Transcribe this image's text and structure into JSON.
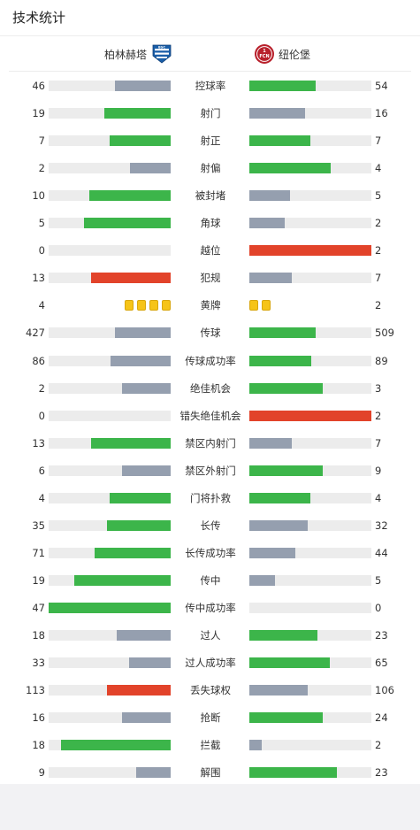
{
  "page": {
    "title": "技术统计"
  },
  "teams": {
    "home": {
      "name": "柏林赫塔",
      "logo_icon": "hertha-berlin-logo-icon",
      "colors": {
        "primary": "#1a5ea8",
        "secondary": "#ffffff"
      }
    },
    "away": {
      "name": "纽伦堡",
      "logo_icon": "fc-nurnberg-logo-icon",
      "logo_text": "1.FCN",
      "colors": {
        "primary": "#b8202b",
        "secondary": "#ffffff"
      }
    }
  },
  "colors": {
    "higher": "#3cb54a",
    "lower": "#959faf",
    "maximum": "#e2432a",
    "track": "#ececec",
    "yellow_card": "#f6c418"
  },
  "stats": [
    {
      "label": "控球率",
      "home": "46",
      "away": "54",
      "home_fill": 0.46,
      "away_fill": 0.54,
      "home_color": "lower",
      "away_color": "higher"
    },
    {
      "label": "射门",
      "home": "19",
      "away": "16",
      "home_fill": 0.54,
      "away_fill": 0.46,
      "home_color": "higher",
      "away_color": "lower"
    },
    {
      "label": "射正",
      "home": "7",
      "away": "7",
      "home_fill": 0.5,
      "away_fill": 0.5,
      "home_color": "higher",
      "away_color": "higher"
    },
    {
      "label": "射偏",
      "home": "2",
      "away": "4",
      "home_fill": 0.33,
      "away_fill": 0.67,
      "home_color": "lower",
      "away_color": "higher"
    },
    {
      "label": "被封堵",
      "home": "10",
      "away": "5",
      "home_fill": 0.67,
      "away_fill": 0.33,
      "home_color": "higher",
      "away_color": "lower"
    },
    {
      "label": "角球",
      "home": "5",
      "away": "2",
      "home_fill": 0.71,
      "away_fill": 0.29,
      "home_color": "higher",
      "away_color": "lower"
    },
    {
      "label": "越位",
      "home": "0",
      "away": "2",
      "home_fill": 0.0,
      "away_fill": 1.0,
      "home_color": "lower",
      "away_color": "maximum"
    },
    {
      "label": "犯规",
      "home": "13",
      "away": "7",
      "home_fill": 0.65,
      "away_fill": 0.35,
      "home_color": "maximum",
      "away_color": "lower"
    },
    {
      "label": "黄牌",
      "home": "4",
      "away": "2",
      "type": "cards",
      "home_cards": 4,
      "away_cards": 2
    },
    {
      "label": "传球",
      "home": "427",
      "away": "509",
      "home_fill": 0.46,
      "away_fill": 0.54,
      "home_color": "lower",
      "away_color": "higher"
    },
    {
      "label": "传球成功率",
      "home": "86",
      "away": "89",
      "home_fill": 0.49,
      "away_fill": 0.51,
      "home_color": "lower",
      "away_color": "higher"
    },
    {
      "label": "绝佳机会",
      "home": "2",
      "away": "3",
      "home_fill": 0.4,
      "away_fill": 0.6,
      "home_color": "lower",
      "away_color": "higher"
    },
    {
      "label": "错失绝佳机会",
      "home": "0",
      "away": "2",
      "home_fill": 0.0,
      "away_fill": 1.0,
      "home_color": "lower",
      "away_color": "maximum"
    },
    {
      "label": "禁区内射门",
      "home": "13",
      "away": "7",
      "home_fill": 0.65,
      "away_fill": 0.35,
      "home_color": "higher",
      "away_color": "lower"
    },
    {
      "label": "禁区外射门",
      "home": "6",
      "away": "9",
      "home_fill": 0.4,
      "away_fill": 0.6,
      "home_color": "lower",
      "away_color": "higher"
    },
    {
      "label": "门将扑救",
      "home": "4",
      "away": "4",
      "home_fill": 0.5,
      "away_fill": 0.5,
      "home_color": "higher",
      "away_color": "higher"
    },
    {
      "label": "长传",
      "home": "35",
      "away": "32",
      "home_fill": 0.52,
      "away_fill": 0.48,
      "home_color": "higher",
      "away_color": "lower"
    },
    {
      "label": "长传成功率",
      "home": "71",
      "away": "44",
      "home_fill": 0.62,
      "away_fill": 0.38,
      "home_color": "higher",
      "away_color": "lower"
    },
    {
      "label": "传中",
      "home": "19",
      "away": "5",
      "home_fill": 0.79,
      "away_fill": 0.21,
      "home_color": "higher",
      "away_color": "lower"
    },
    {
      "label": "传中成功率",
      "home": "47",
      "away": "0",
      "home_fill": 1.0,
      "away_fill": 0.0,
      "home_color": "higher",
      "away_color": "lower"
    },
    {
      "label": "过人",
      "home": "18",
      "away": "23",
      "home_fill": 0.44,
      "away_fill": 0.56,
      "home_color": "lower",
      "away_color": "higher"
    },
    {
      "label": "过人成功率",
      "home": "33",
      "away": "65",
      "home_fill": 0.34,
      "away_fill": 0.66,
      "home_color": "lower",
      "away_color": "higher"
    },
    {
      "label": "丢失球权",
      "home": "113",
      "away": "106",
      "home_fill": 0.52,
      "away_fill": 0.48,
      "home_color": "maximum",
      "away_color": "lower"
    },
    {
      "label": "抢断",
      "home": "16",
      "away": "24",
      "home_fill": 0.4,
      "away_fill": 0.6,
      "home_color": "lower",
      "away_color": "higher"
    },
    {
      "label": "拦截",
      "home": "18",
      "away": "2",
      "home_fill": 0.9,
      "away_fill": 0.1,
      "home_color": "higher",
      "away_color": "lower"
    },
    {
      "label": "解围",
      "home": "9",
      "away": "23",
      "home_fill": 0.28,
      "away_fill": 0.72,
      "home_color": "lower",
      "away_color": "higher"
    }
  ]
}
